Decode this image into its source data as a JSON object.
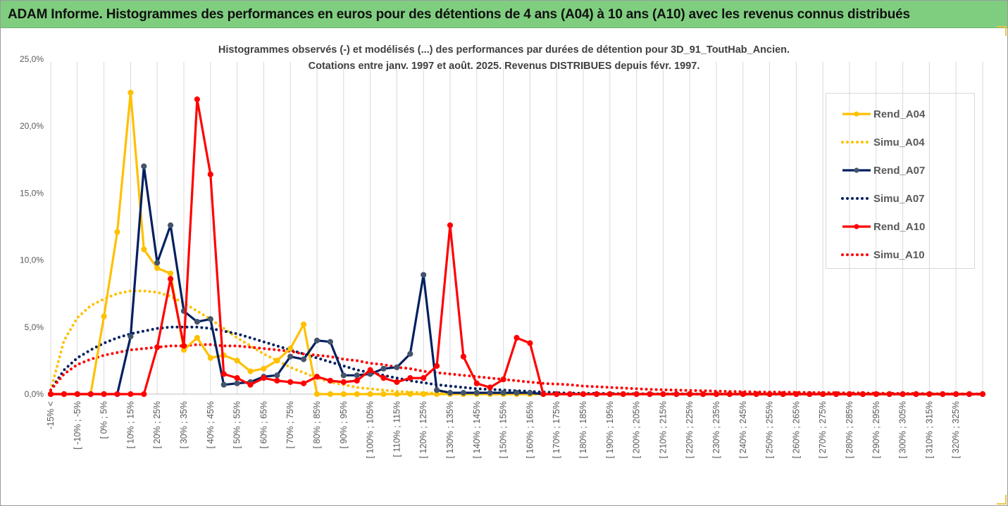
{
  "banner": {
    "title": "ADAM Informe. Histogrammes des performances en euros pour des détentions de 4 ans (A04) à 10 ans (A10) avec les revenus connus distribués"
  },
  "chart_data": {
    "type": "line",
    "title_lines": [
      "Histogrammes observés (-) et modélisés (...) des performances par durées de détention pour 3D_91_ToutHab_Ancien.",
      "Cotations entre janv. 1997 et août. 2025. Revenus DISTRIBUES depuis févr. 1997."
    ],
    "xlabel": "",
    "ylabel": "",
    "ylim": [
      0,
      25
    ],
    "y_ticks": [
      "0,0%",
      "5,0%",
      "10,0%",
      "15,0%",
      "20,0%",
      "25,0%"
    ],
    "grid": "vertical",
    "legend_position": "right",
    "x_tick_labels": [
      "-15% <",
      "[ -10% ; -5%",
      "[ 0% ; 5%",
      "[ 10% ; 15%",
      "[ 20% ; 25%",
      "[ 30% ; 35%",
      "[ 40% ; 45%",
      "[ 50% ; 55%",
      "[ 60% ; 65%",
      "[ 70% ; 75%",
      "[ 80% ; 85%",
      "[ 90% ; 95%",
      "[ 100% ; 105%",
      "[ 110% ; 115%",
      "[ 120% ; 125%",
      "[ 130% ; 135%",
      "[ 140% ; 145%",
      "[ 150% ; 155%",
      "[ 160% ; 165%",
      "[ 170% ; 175%",
      "[ 180% ; 185%",
      "[ 190% ; 195%",
      "[ 200% ; 205%",
      "[ 210% ; 215%",
      "[ 220% ; 225%",
      "[ 230% ; 235%",
      "[ 240% ; 245%",
      "[ 250% ; 255%",
      "[ 260% ; 265%",
      "[ 270% ; 275%",
      "[ 280% ; 285%",
      "[ 290% ; 295%",
      "[ 300% ; 305%",
      "[ 310% ; 315%",
      "[ 320% ; 325%"
    ],
    "series": [
      {
        "name": "Rend_A04",
        "style": "solid",
        "color": "#ffc000",
        "values": [
          0,
          0,
          0,
          0,
          5.8,
          12.1,
          22.5,
          10.8,
          9.4,
          9.0,
          3.3,
          4.2,
          2.7,
          2.9,
          2.5,
          1.7,
          1.9,
          2.5,
          3.4,
          5.2,
          0,
          0,
          0,
          0,
          0,
          0,
          0,
          0,
          0,
          0,
          0,
          0,
          0,
          0,
          0,
          0,
          0,
          0,
          0,
          0,
          0,
          0,
          0,
          0,
          0,
          0,
          0,
          0,
          0,
          0,
          0,
          0,
          0,
          0,
          0,
          0,
          0,
          0,
          0,
          0,
          0,
          0,
          0,
          0,
          0,
          0,
          0,
          0,
          0,
          0,
          0
        ]
      },
      {
        "name": "Simu_A04",
        "style": "dotted",
        "color": "#ffc000",
        "values": [
          0.3,
          4.0,
          5.7,
          6.6,
          7.1,
          7.5,
          7.7,
          7.7,
          7.6,
          7.3,
          6.8,
          6.2,
          5.6,
          4.9,
          4.2,
          3.6,
          3.0,
          2.5,
          2.0,
          1.6,
          1.2,
          0.9,
          0.7,
          0.5,
          0.4,
          0.3,
          0.2,
          0.15,
          0.1,
          0.07,
          0.05,
          0.03,
          0.02,
          0.01,
          0,
          0,
          0,
          0,
          0,
          0,
          0,
          0,
          0,
          0,
          0,
          0,
          0,
          0,
          0,
          0,
          0,
          0,
          0,
          0,
          0,
          0,
          0,
          0,
          0,
          0,
          0,
          0,
          0,
          0,
          0,
          0,
          0,
          0,
          0,
          0,
          0
        ]
      },
      {
        "name": "Rend_A07",
        "style": "solid",
        "color": "#002060",
        "values": [
          0,
          0,
          0,
          0,
          0,
          0,
          4.3,
          17.0,
          9.8,
          12.6,
          6.2,
          5.4,
          5.6,
          0.7,
          0.8,
          0.9,
          1.3,
          1.4,
          2.8,
          2.6,
          4.0,
          3.9,
          1.4,
          1.4,
          1.5,
          1.9,
          2.0,
          3.0,
          8.9,
          0.3,
          0.1,
          0.1,
          0.1,
          0.1,
          0.1,
          0.1,
          0.1,
          0,
          0,
          0,
          0,
          0,
          0,
          0,
          0,
          0,
          0,
          0,
          0,
          0,
          0,
          0,
          0,
          0,
          0,
          0,
          0,
          0,
          0,
          0,
          0,
          0,
          0,
          0,
          0,
          0,
          0,
          0,
          0,
          0,
          0
        ]
      },
      {
        "name": "Simu_A07",
        "style": "dotted",
        "color": "#002060",
        "values": [
          0.3,
          1.8,
          2.7,
          3.3,
          3.8,
          4.2,
          4.5,
          4.7,
          4.9,
          5.0,
          5.0,
          5.0,
          4.9,
          4.7,
          4.5,
          4.2,
          3.9,
          3.6,
          3.3,
          3.0,
          2.7,
          2.4,
          2.1,
          1.8,
          1.6,
          1.4,
          1.2,
          1.0,
          0.85,
          0.7,
          0.6,
          0.5,
          0.4,
          0.35,
          0.3,
          0.25,
          0.2,
          0.15,
          0.1,
          0.08,
          0.06,
          0.05,
          0.04,
          0.03,
          0.02,
          0.02,
          0.01,
          0.01,
          0.01,
          0,
          0,
          0,
          0,
          0,
          0,
          0,
          0,
          0,
          0,
          0,
          0,
          0,
          0,
          0,
          0,
          0,
          0,
          0,
          0,
          0,
          0
        ]
      },
      {
        "name": "Rend_A10",
        "style": "solid",
        "color": "#ff0000",
        "values": [
          0,
          0,
          0,
          0,
          0,
          0,
          0,
          0,
          3.5,
          8.6,
          3.6,
          22.0,
          16.4,
          1.5,
          1.2,
          0.7,
          1.2,
          1.0,
          0.9,
          0.8,
          1.3,
          1.0,
          0.9,
          1.0,
          1.8,
          1.2,
          0.9,
          1.2,
          1.2,
          2.1,
          12.6,
          2.8,
          0.8,
          0.5,
          1.1,
          4.2,
          3.8,
          0,
          0,
          0,
          0,
          0,
          0,
          0,
          0,
          0,
          0,
          0,
          0,
          0,
          0,
          0,
          0,
          0,
          0,
          0,
          0,
          0,
          0,
          0,
          0,
          0,
          0,
          0,
          0,
          0,
          0,
          0,
          0,
          0,
          0
        ]
      },
      {
        "name": "Simu_A10",
        "style": "dotted",
        "color": "#ff0000",
        "values": [
          0.3,
          1.5,
          2.2,
          2.6,
          2.9,
          3.1,
          3.3,
          3.4,
          3.5,
          3.6,
          3.6,
          3.7,
          3.7,
          3.6,
          3.6,
          3.5,
          3.4,
          3.3,
          3.2,
          3.0,
          2.9,
          2.8,
          2.6,
          2.5,
          2.3,
          2.2,
          2.0,
          1.9,
          1.7,
          1.6,
          1.5,
          1.4,
          1.3,
          1.2,
          1.1,
          1.0,
          0.9,
          0.8,
          0.75,
          0.7,
          0.6,
          0.55,
          0.5,
          0.45,
          0.4,
          0.35,
          0.32,
          0.3,
          0.27,
          0.25,
          0.22,
          0.2,
          0.18,
          0.16,
          0.15,
          0.14,
          0.13,
          0.12,
          0.11,
          0.1,
          0.09,
          0.08,
          0.07,
          0.06,
          0.05,
          0.04,
          0.03,
          0.02,
          0.02,
          0.01,
          0.01
        ]
      }
    ]
  }
}
